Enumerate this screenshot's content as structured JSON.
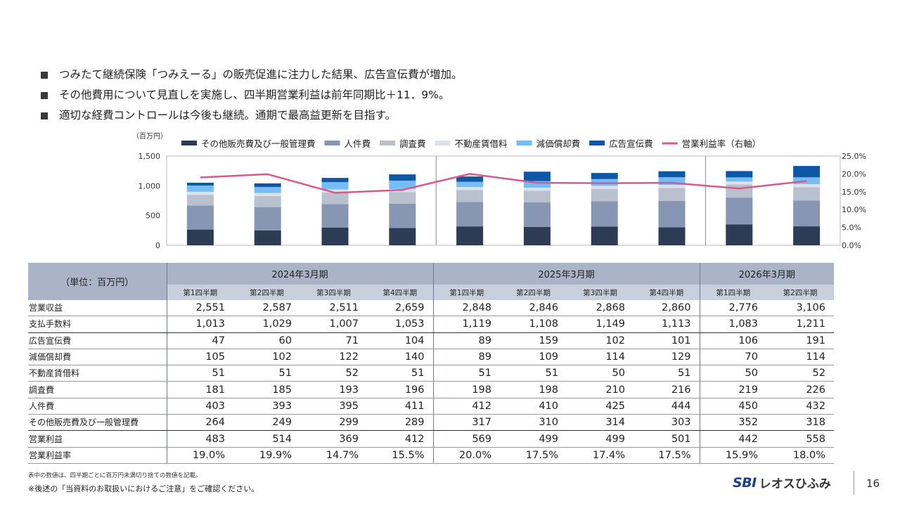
{
  "bullets": [
    "つみたて継続保険「つみえーる」の販売促進に注力した結果、広告宣伝費が増加。",
    "その他費用について見直しを実施し、四半期営業利益は前年同期比＋11．9%。",
    "適切な経費コントロールは今後も継続。通期で最高益更新を目指す。"
  ],
  "unit_note": "（百万円）",
  "table": {
    "unit_label": "（単位：百万円）",
    "years": [
      {
        "label": "2024年3月期",
        "span": 4
      },
      {
        "label": "2025年3月期",
        "span": 4
      },
      {
        "label": "2026年3月期",
        "span": 2
      }
    ],
    "quarters": [
      "第1四半期",
      "第2四半期",
      "第3四半期",
      "第4四半期",
      "第1四半期",
      "第2四半期",
      "第3四半期",
      "第4四半期",
      "第1四半期",
      "第2四半期"
    ],
    "rows": [
      {
        "label": "営業収益",
        "values": [
          "2,551",
          "2,587",
          "2,511",
          "2,659",
          "2,848",
          "2,846",
          "2,868",
          "2,860",
          "2,776",
          "3,106"
        ]
      },
      {
        "label": "支払手数料",
        "values": [
          "1,013",
          "1,029",
          "1,007",
          "1,053",
          "1,119",
          "1,108",
          "1,149",
          "1,113",
          "1,083",
          "1,211"
        ],
        "thick": true
      },
      {
        "label": "広告宣伝費",
        "values": [
          "47",
          "60",
          "71",
          "104",
          "89",
          "159",
          "102",
          "101",
          "106",
          "191"
        ]
      },
      {
        "label": "減価償却費",
        "values": [
          "105",
          "102",
          "122",
          "140",
          "89",
          "109",
          "114",
          "129",
          "70",
          "114"
        ]
      },
      {
        "label": "不動産賃借料",
        "values": [
          "51",
          "51",
          "52",
          "51",
          "51",
          "51",
          "50",
          "51",
          "50",
          "52"
        ]
      },
      {
        "label": "調査費",
        "values": [
          "181",
          "185",
          "193",
          "196",
          "198",
          "198",
          "210",
          "216",
          "219",
          "226"
        ]
      },
      {
        "label": "人件費",
        "values": [
          "403",
          "393",
          "395",
          "411",
          "412",
          "410",
          "425",
          "444",
          "450",
          "432"
        ]
      },
      {
        "label": "その他販売費及び一般管理費",
        "values": [
          "264",
          "249",
          "299",
          "289",
          "317",
          "310",
          "314",
          "303",
          "352",
          "318"
        ],
        "thick": true
      },
      {
        "label": "営業利益",
        "values": [
          "483",
          "514",
          "369",
          "412",
          "569",
          "499",
          "499",
          "501",
          "442",
          "558"
        ]
      },
      {
        "label": "営業利益率",
        "values": [
          "19.0%",
          "19.9%",
          "14.7%",
          "15.5%",
          "20.0%",
          "17.5%",
          "17.4%",
          "17.5%",
          "15.9%",
          "18.0%"
        ]
      }
    ]
  },
  "chart_data": {
    "type": "bar",
    "stacked": true,
    "categories": [
      "2024年3月期 第1四半期",
      "2024年3月期 第2四半期",
      "2024年3月期 第3四半期",
      "2024年3月期 第4四半期",
      "2025年3月期 第1四半期",
      "2025年3月期 第2四半期",
      "2025年3月期 第3四半期",
      "2025年3月期 第4四半期",
      "2026年3月期 第1四半期",
      "2026年3月期 第2四半期"
    ],
    "series": [
      {
        "name": "その他販売費及び一般管理費",
        "color": "#2e3b55",
        "values": [
          264,
          249,
          299,
          289,
          317,
          310,
          314,
          303,
          352,
          318
        ]
      },
      {
        "name": "人件費",
        "color": "#8796b2",
        "values": [
          403,
          393,
          395,
          411,
          412,
          410,
          425,
          444,
          450,
          432
        ]
      },
      {
        "name": "調査費",
        "color": "#b9c1cf",
        "values": [
          181,
          185,
          193,
          196,
          198,
          198,
          210,
          216,
          219,
          226
        ]
      },
      {
        "name": "不動産賃借料",
        "color": "#dde2ea",
        "values": [
          51,
          51,
          52,
          51,
          51,
          51,
          50,
          51,
          50,
          52
        ]
      },
      {
        "name": "減価償却費",
        "color": "#74bdf5",
        "values": [
          105,
          102,
          122,
          140,
          89,
          109,
          114,
          129,
          70,
          114
        ]
      },
      {
        "name": "広告宣伝費",
        "color": "#0d57a6",
        "values": [
          47,
          60,
          71,
          104,
          89,
          159,
          102,
          101,
          106,
          191
        ]
      }
    ],
    "line_series": {
      "name": "営業利益率（右軸）",
      "color": "#d9598c",
      "values": [
        19.0,
        19.9,
        14.7,
        15.5,
        20.0,
        17.5,
        17.4,
        17.5,
        15.9,
        18.0
      ]
    },
    "y_left": {
      "min": 0,
      "max": 1500,
      "ticks": [
        "0",
        "500",
        "1,000",
        "1,500"
      ],
      "tick_values": [
        0,
        500,
        1000,
        1500
      ]
    },
    "y_right": {
      "min": 0,
      "max": 25,
      "ticks": [
        "0.0%",
        "5.0%",
        "10.0%",
        "15.0%",
        "20.0%",
        "25.0%"
      ],
      "tick_values": [
        0,
        5,
        10,
        15,
        20,
        25
      ]
    },
    "ylabel": "（百万円）",
    "legend_position": "top"
  },
  "footnotes": [
    "表中の数値は、四半期ごとに百万円未満切り捨ての数値を記載。",
    "※後述の「当資料のお取扱いにおけるご注意」をご確認ください。"
  ],
  "logo": {
    "brand": "SBI",
    "name": "レオスひふみ"
  },
  "page_number": "16"
}
